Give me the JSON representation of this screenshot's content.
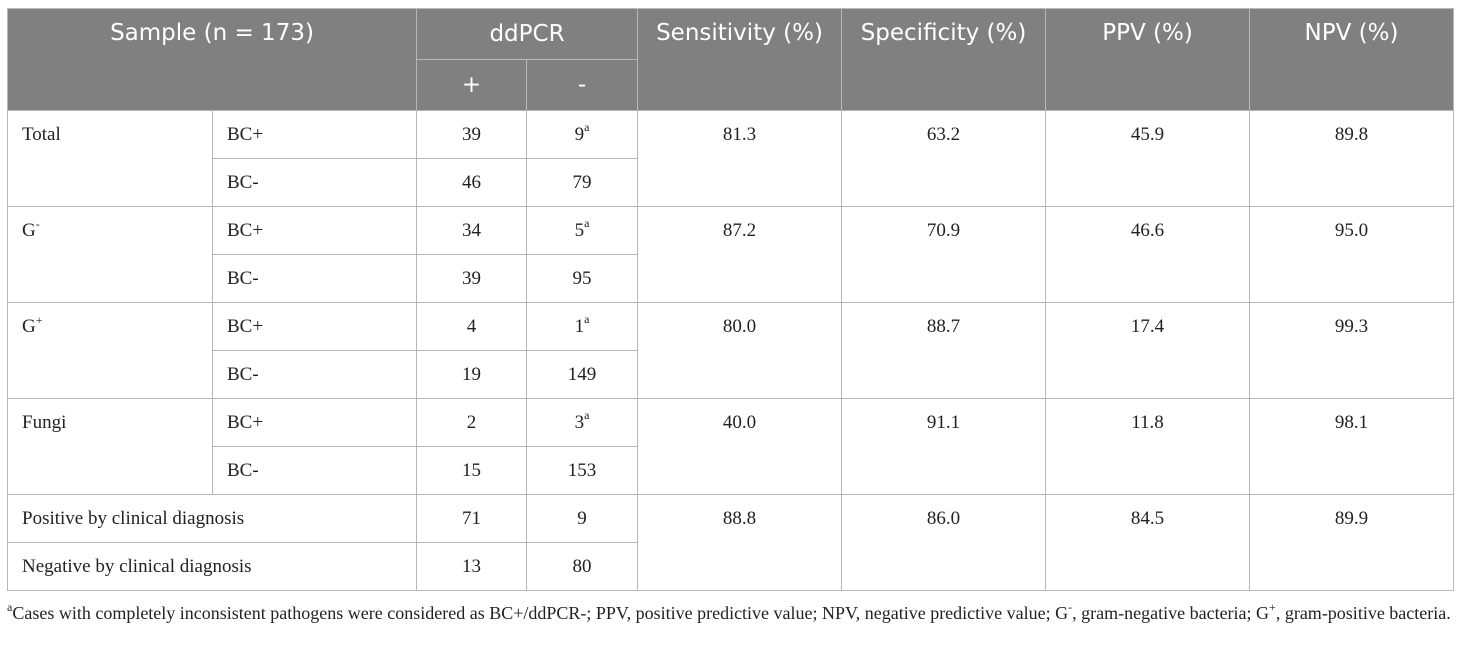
{
  "header": {
    "sample": "Sample (n = 173)",
    "ddpcr": "ddPCR",
    "plus": "+",
    "minus": "-",
    "sensitivity": "Sensitivity (%)",
    "specificity": "Specificity (%)",
    "ppv": "PPV (%)",
    "npv": "NPV (%)"
  },
  "groups": [
    {
      "label": "Total",
      "label_sup": "",
      "rows": [
        {
          "bc": "BC+",
          "pos": "39",
          "neg": "9",
          "neg_sup": "a"
        },
        {
          "bc": "BC-",
          "pos": "46",
          "neg": "79",
          "neg_sup": ""
        }
      ],
      "sensitivity": "81.3",
      "specificity": "63.2",
      "ppv": "45.9",
      "npv": "89.8"
    },
    {
      "label": "G",
      "label_sup": "-",
      "rows": [
        {
          "bc": "BC+",
          "pos": "34",
          "neg": "5",
          "neg_sup": "a"
        },
        {
          "bc": "BC-",
          "pos": "39",
          "neg": "95",
          "neg_sup": ""
        }
      ],
      "sensitivity": "87.2",
      "specificity": "70.9",
      "ppv": "46.6",
      "npv": "95.0"
    },
    {
      "label": "G",
      "label_sup": "+",
      "rows": [
        {
          "bc": "BC+",
          "pos": "4",
          "neg": "1",
          "neg_sup": "a"
        },
        {
          "bc": "BC-",
          "pos": "19",
          "neg": "149",
          "neg_sup": ""
        }
      ],
      "sensitivity": "80.0",
      "specificity": "88.7",
      "ppv": "17.4",
      "npv": "99.3"
    },
    {
      "label": "Fungi",
      "label_sup": "",
      "rows": [
        {
          "bc": "BC+",
          "pos": "2",
          "neg": "3",
          "neg_sup": "a"
        },
        {
          "bc": "BC-",
          "pos": "15",
          "neg": "153",
          "neg_sup": ""
        }
      ],
      "sensitivity": "40.0",
      "specificity": "91.1",
      "ppv": "11.8",
      "npv": "98.1"
    }
  ],
  "clinical": {
    "rows": [
      {
        "label": "Positive by clinical diagnosis",
        "pos": "71",
        "neg": "9"
      },
      {
        "label": "Negative by clinical diagnosis",
        "pos": "13",
        "neg": "80"
      }
    ],
    "sensitivity": "88.8",
    "specificity": "86.0",
    "ppv": "84.5",
    "npv": "89.9"
  },
  "footnote": {
    "marker": "a",
    "text_1": "Cases with completely inconsistent pathogens were considered as BC+/ddPCR-; PPV, positive predictive value; NPV, negative predictive value; G",
    "sup_minus": "-",
    "text_2": ", gram-negative bacteria; G",
    "sup_plus": "+",
    "text_3": ", gram-positive bacteria."
  }
}
